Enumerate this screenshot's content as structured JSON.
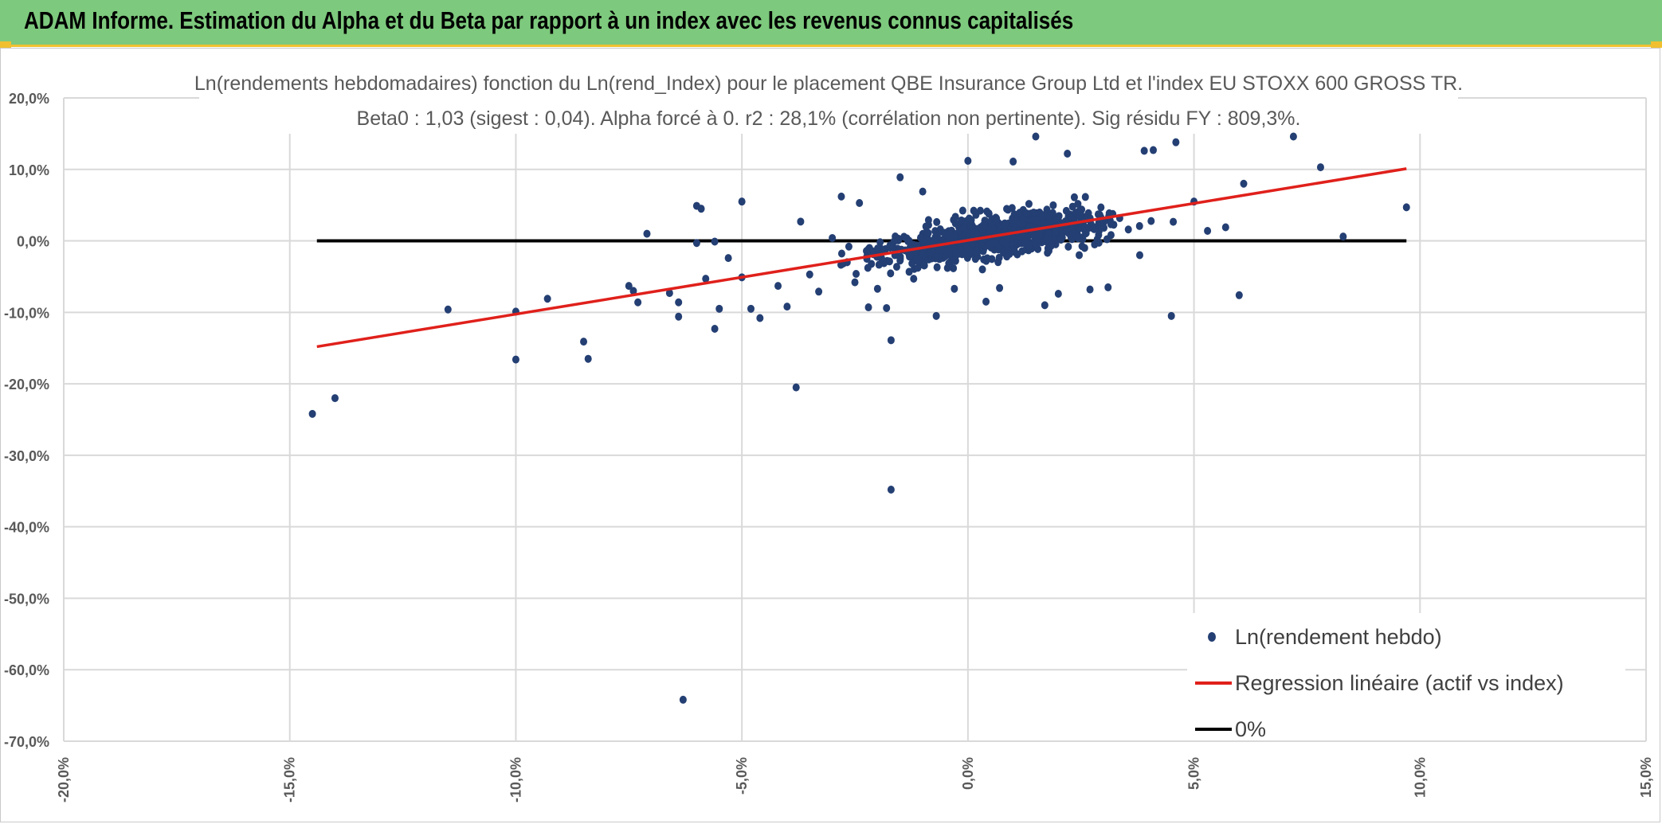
{
  "header": {
    "title": "ADAM Informe. Estimation du Alpha et du Beta par rapport à un index avec les revenus connus capitalisés"
  },
  "colors": {
    "header_bg": "#7dc97d",
    "accent": "#f0c030",
    "points": "#243f73",
    "regression": "#e0201b",
    "zero_line": "#000000"
  },
  "chart_data": {
    "type": "scatter",
    "title": "Ln(rendements hebdomadaires) fonction du Ln(rend_Index) pour le placement QBE Insurance Group Ltd et l'index EU STOXX 600 GROSS TR.",
    "subtitle": "Beta0 : 1,03 (sigest : 0,04). Alpha forcé à 0. r2 : 28,1% (corrélation non pertinente). Sig résidu FY : 809,3%.",
    "xlabel": "",
    "ylabel": "",
    "xlim": [
      -20,
      15
    ],
    "ylim": [
      -70,
      20
    ],
    "x_ticks": [
      -20,
      -15,
      -10,
      -5,
      0,
      5,
      10,
      15
    ],
    "y_ticks": [
      20,
      10,
      0,
      -10,
      -20,
      -30,
      -40,
      -50,
      -60,
      -70
    ],
    "x_tick_labels": [
      "-20,0%",
      "-15,0%",
      "-10,0%",
      "-5,0%",
      "0,0%",
      "5,0%",
      "10,0%",
      "15,0%"
    ],
    "y_tick_labels": [
      "20,0%",
      "10,0%",
      "0,0%",
      "-10,0%",
      "-20,0%",
      "-30,0%",
      "-40,0%",
      "-50,0%",
      "-60,0%",
      "-70,0%"
    ],
    "grid": true,
    "legend_position": "bottom-right",
    "series": [
      {
        "name": "Ln(rendement hebdo)",
        "kind": "scatter",
        "points": [
          [
            -14.5,
            -24.2
          ],
          [
            -14.0,
            -22.0
          ],
          [
            -11.5,
            -9.6
          ],
          [
            -10.0,
            -9.9
          ],
          [
            -10.0,
            -16.6
          ],
          [
            -9.3,
            -8.1
          ],
          [
            -8.5,
            -14.1
          ],
          [
            -8.4,
            -16.5
          ],
          [
            -7.5,
            -6.3
          ],
          [
            -7.4,
            -7.0
          ],
          [
            -7.3,
            -8.6
          ],
          [
            -7.1,
            1.0
          ],
          [
            -6.6,
            -7.3
          ],
          [
            -6.4,
            -8.6
          ],
          [
            -6.4,
            -10.6
          ],
          [
            -6.3,
            -64.2
          ],
          [
            -6.0,
            4.9
          ],
          [
            -6.0,
            -0.3
          ],
          [
            -5.9,
            4.5
          ],
          [
            -5.8,
            -5.3
          ],
          [
            -5.6,
            -12.3
          ],
          [
            -5.6,
            -0.1
          ],
          [
            -5.5,
            -9.5
          ],
          [
            -5.3,
            -2.4
          ],
          [
            -5.0,
            5.5
          ],
          [
            -5.0,
            -5.1
          ],
          [
            -4.8,
            -9.5
          ],
          [
            -4.6,
            -10.8
          ],
          [
            -4.2,
            -6.3
          ],
          [
            -4.0,
            -9.2
          ],
          [
            -3.8,
            -20.5
          ],
          [
            -3.7,
            2.7
          ],
          [
            -3.5,
            -4.7
          ],
          [
            -3.3,
            -7.1
          ],
          [
            -3.0,
            0.4
          ],
          [
            -2.8,
            6.2
          ],
          [
            -2.5,
            -5.8
          ],
          [
            -2.4,
            5.3
          ],
          [
            -2.2,
            -9.3
          ],
          [
            -2.0,
            -6.7
          ],
          [
            -1.8,
            -9.4
          ],
          [
            -1.7,
            -13.9
          ],
          [
            -1.7,
            -34.8
          ],
          [
            -1.5,
            8.9
          ],
          [
            -1.2,
            -5.3
          ],
          [
            -1.0,
            6.9
          ],
          [
            -0.7,
            -10.5
          ],
          [
            -0.3,
            -6.7
          ],
          [
            0.0,
            11.2
          ],
          [
            0.4,
            -8.5
          ],
          [
            0.7,
            -6.6
          ],
          [
            1.0,
            11.1
          ],
          [
            1.5,
            14.6
          ],
          [
            1.7,
            -9.0
          ],
          [
            2.0,
            -7.4
          ],
          [
            2.2,
            12.2
          ],
          [
            2.7,
            -6.8
          ],
          [
            3.1,
            -6.5
          ],
          [
            3.8,
            -2.0
          ],
          [
            3.9,
            12.6
          ],
          [
            4.1,
            12.7
          ],
          [
            4.5,
            -10.5
          ],
          [
            4.6,
            13.8
          ],
          [
            5.0,
            5.5
          ],
          [
            5.3,
            1.4
          ],
          [
            5.7,
            1.9
          ],
          [
            6.0,
            -7.6
          ],
          [
            6.1,
            8.0
          ],
          [
            7.2,
            14.6
          ],
          [
            7.8,
            10.3
          ],
          [
            8.3,
            0.6
          ],
          [
            9.7,
            4.7
          ]
        ]
      },
      {
        "name": "Regression linéaire (actif vs index)",
        "kind": "line",
        "x": [
          -14.4,
          9.7
        ],
        "y": [
          -14.8,
          10.1
        ]
      },
      {
        "name": "0%",
        "kind": "line",
        "x": [
          -14.4,
          9.7
        ],
        "y": [
          0,
          0
        ]
      }
    ],
    "cluster": {
      "description": "dense core of weekly observations",
      "center": [
        0.6,
        0.8
      ],
      "sigma_x": 1.25,
      "beta": 1.03,
      "residual_sigma": 2.6,
      "count": 900
    }
  },
  "legend": {
    "items": [
      {
        "label": "Ln(rendement hebdo)",
        "marker": "dot"
      },
      {
        "label": "Regression linéaire (actif vs index)",
        "marker": "red-line"
      },
      {
        "label": "0%",
        "marker": "black-line"
      }
    ]
  }
}
